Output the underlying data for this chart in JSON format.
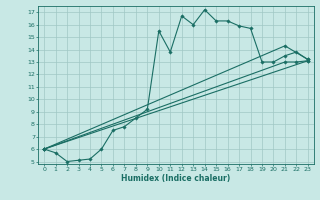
{
  "xlabel": "Humidex (Indice chaleur)",
  "xlim": [
    -0.5,
    23.5
  ],
  "ylim": [
    4.8,
    17.5
  ],
  "yticks": [
    5,
    6,
    7,
    8,
    9,
    10,
    11,
    12,
    13,
    14,
    15,
    16,
    17
  ],
  "xticks": [
    0,
    1,
    2,
    3,
    4,
    5,
    6,
    7,
    8,
    9,
    10,
    11,
    12,
    13,
    14,
    15,
    16,
    17,
    18,
    19,
    20,
    21,
    22,
    23
  ],
  "bg_color": "#c8e8e5",
  "grid_color": "#a0c8c5",
  "line_color": "#1a6e64",
  "line1_x": [
    0,
    1,
    2,
    3,
    4,
    5,
    6,
    7,
    8,
    9,
    10,
    11,
    12,
    13,
    14,
    15,
    16,
    17,
    18,
    19,
    20,
    21,
    22,
    23
  ],
  "line1_y": [
    6.0,
    5.7,
    5.0,
    5.1,
    5.2,
    6.0,
    7.5,
    7.8,
    8.5,
    9.2,
    15.5,
    13.8,
    16.7,
    16.0,
    17.2,
    16.3,
    16.3,
    15.9,
    15.7,
    13.0,
    13.0,
    13.5,
    13.8,
    13.2
  ],
  "line2_x": [
    0,
    23
  ],
  "line2_y": [
    6.0,
    13.1
  ],
  "line3_x": [
    0,
    21,
    22,
    23
  ],
  "line3_y": [
    6.0,
    13.0,
    13.0,
    13.1
  ],
  "line4_x": [
    0,
    21,
    23
  ],
  "line4_y": [
    6.0,
    14.3,
    13.2
  ]
}
